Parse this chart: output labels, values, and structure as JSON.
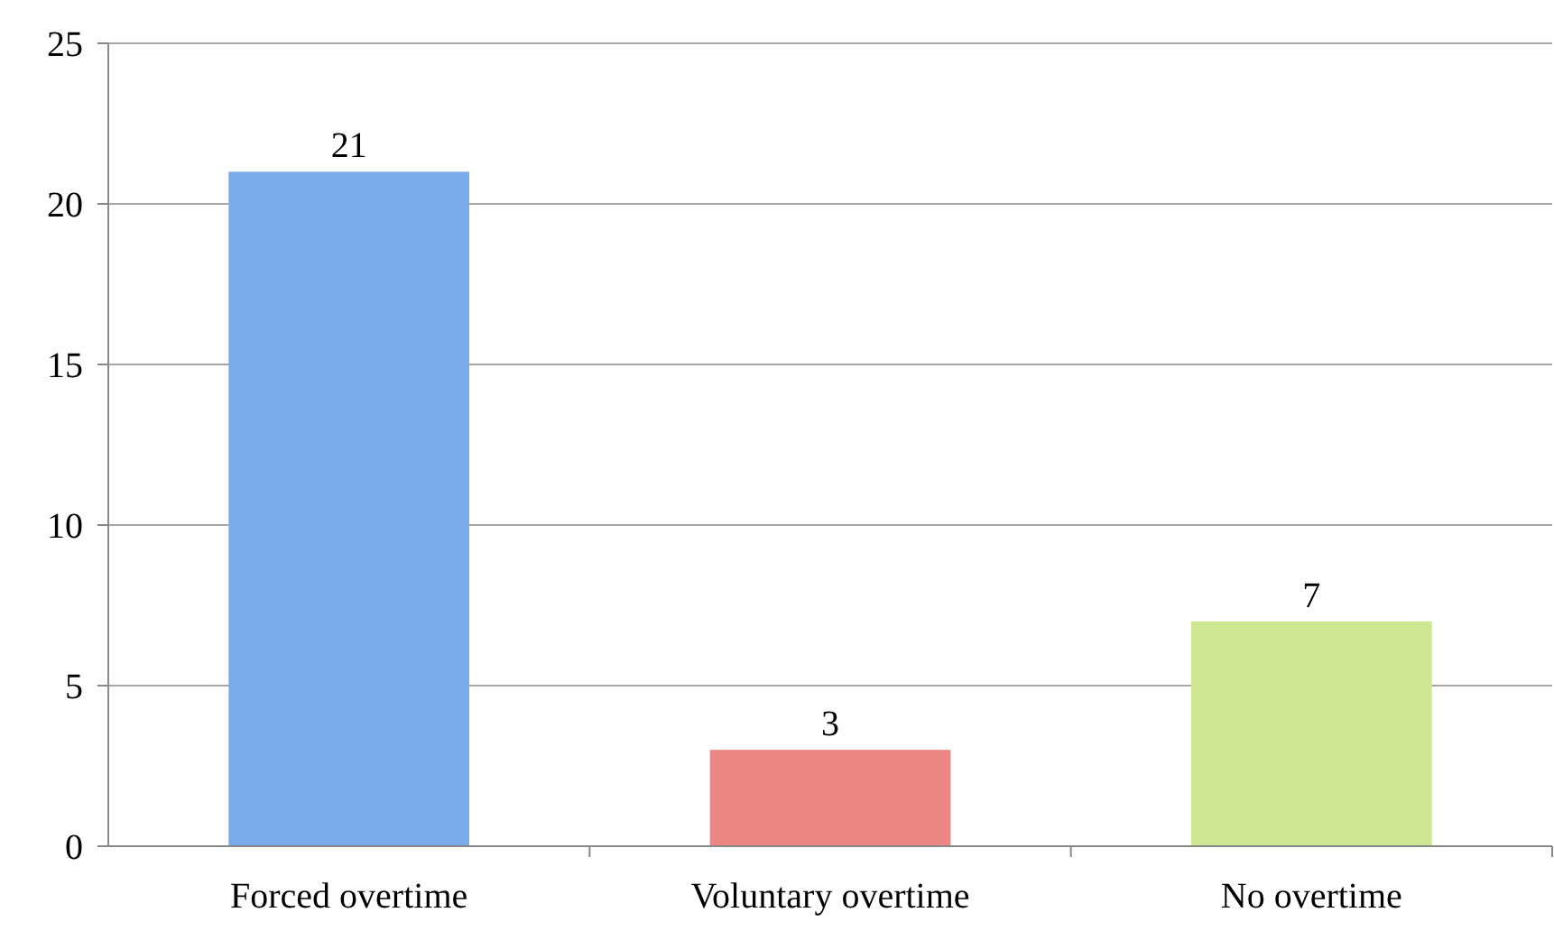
{
  "chart_data": {
    "type": "bar",
    "categories": [
      "Forced overtime",
      "Voluntary overtime",
      "No overtime"
    ],
    "values": [
      21,
      3,
      7
    ],
    "colors": [
      "#7aaaea",
      "#ec8682",
      "#cde890"
    ],
    "ylim": [
      0,
      25
    ],
    "yticks": [
      0,
      5,
      10,
      15,
      20,
      25
    ],
    "grid": "y",
    "data_labels": true
  }
}
